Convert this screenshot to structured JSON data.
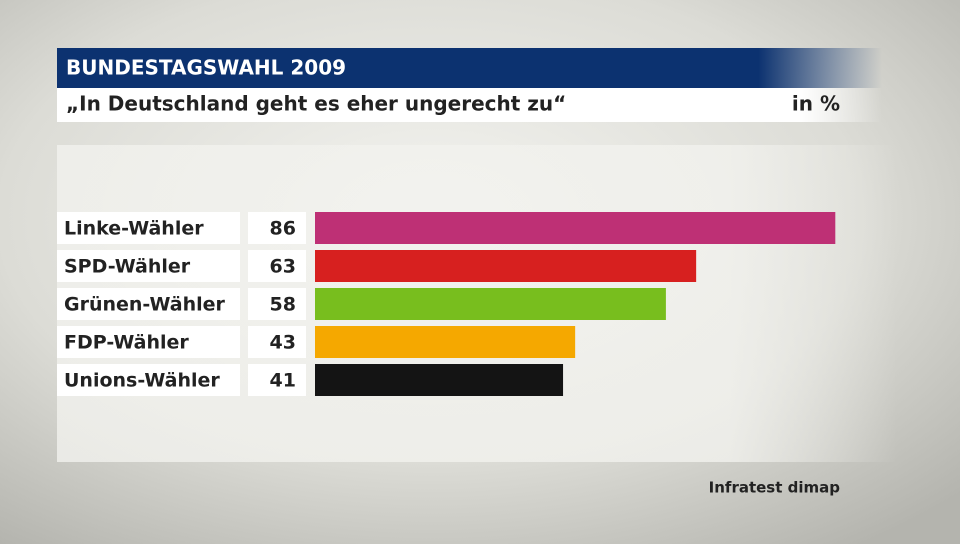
{
  "chart_data": {
    "type": "bar",
    "title": "BUNDESTAGSWAHL 2009",
    "subtitle": "„In Deutschland geht es eher ungerecht zu“",
    "unit": "in %",
    "source": "Infratest dimap",
    "categories": [
      "Linke-Wähler",
      "SPD-Wähler",
      "Grünen-Wähler",
      "FDP-Wähler",
      "Unions-Wähler"
    ],
    "values": [
      86,
      63,
      58,
      43,
      41
    ],
    "colors": [
      "#be3075",
      "#d7201f",
      "#78be1e",
      "#f5a800",
      "#141414"
    ]
  }
}
